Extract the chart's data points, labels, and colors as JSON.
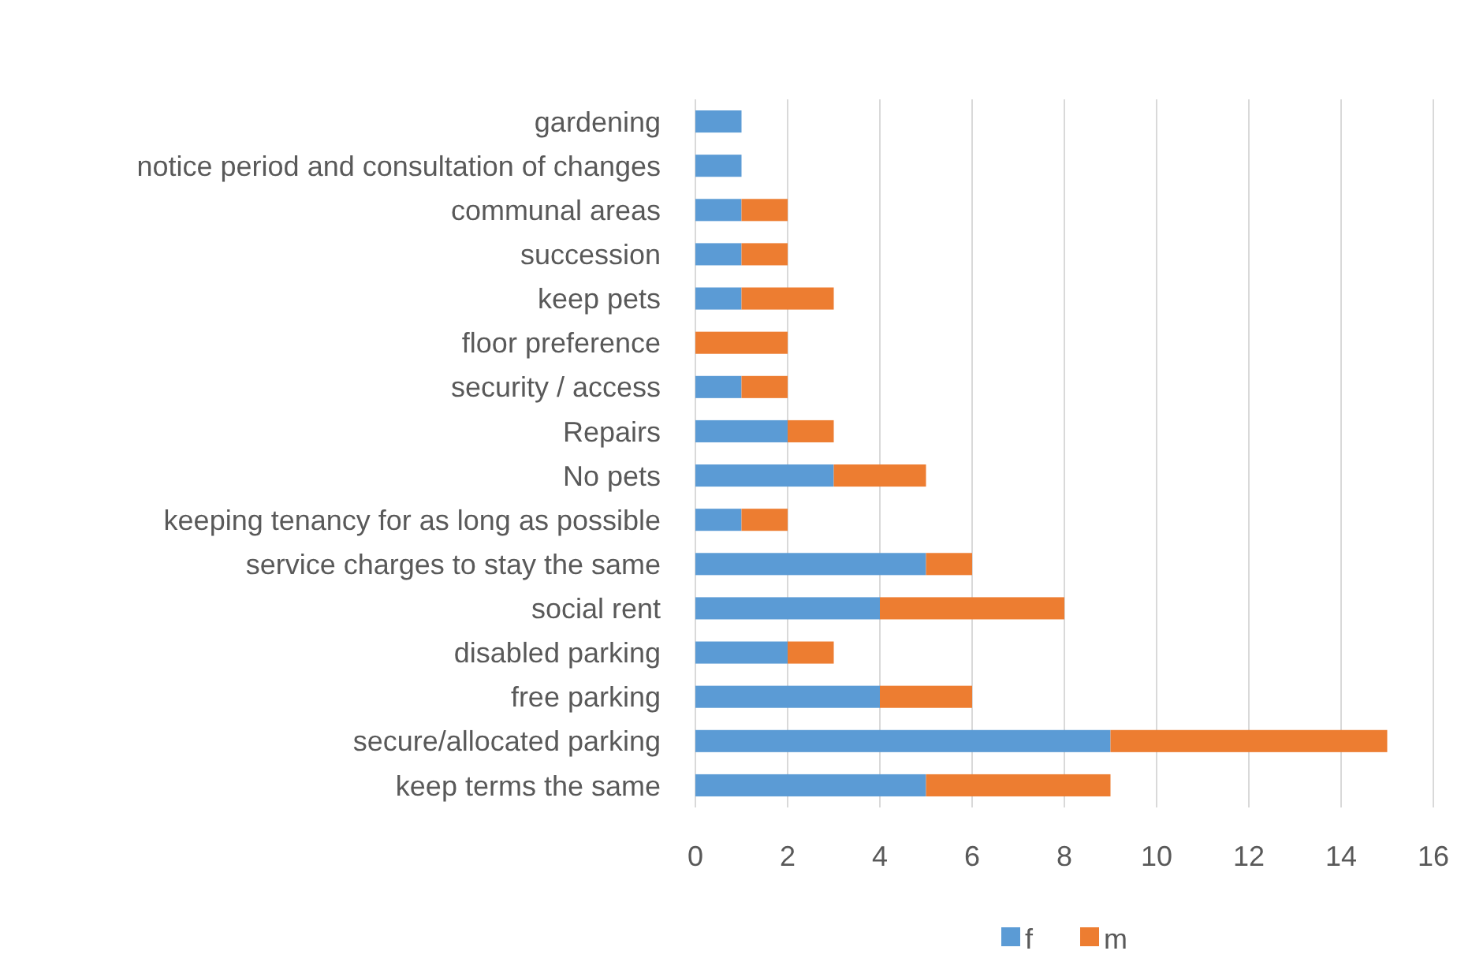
{
  "chart_data": {
    "type": "bar",
    "orientation": "horizontal",
    "stacked": true,
    "categories": [
      "gardening",
      "notice period and consultation of changes",
      "communal areas",
      "succession",
      "keep pets",
      "floor preference",
      "security / access",
      "Repairs",
      "No pets",
      "keeping tenancy for as long as possible",
      "service charges to stay the same",
      "social rent",
      "disabled parking",
      "free parking",
      "secure/allocated parking",
      "keep terms the same"
    ],
    "series": [
      {
        "name": "f",
        "color": "#5b9bd5",
        "values": [
          1,
          1,
          1,
          1,
          1,
          0,
          1,
          2,
          3,
          1,
          5,
          4,
          2,
          4,
          9,
          5
        ]
      },
      {
        "name": "m",
        "color": "#ed7d31",
        "values": [
          0,
          0,
          1,
          1,
          2,
          2,
          1,
          1,
          2,
          1,
          1,
          4,
          1,
          2,
          6,
          4
        ]
      }
    ],
    "xlim": [
      0,
      16
    ],
    "xticks": [
      0,
      2,
      4,
      6,
      8,
      10,
      12,
      14,
      16
    ],
    "grid": "x",
    "legend": "bottom"
  }
}
